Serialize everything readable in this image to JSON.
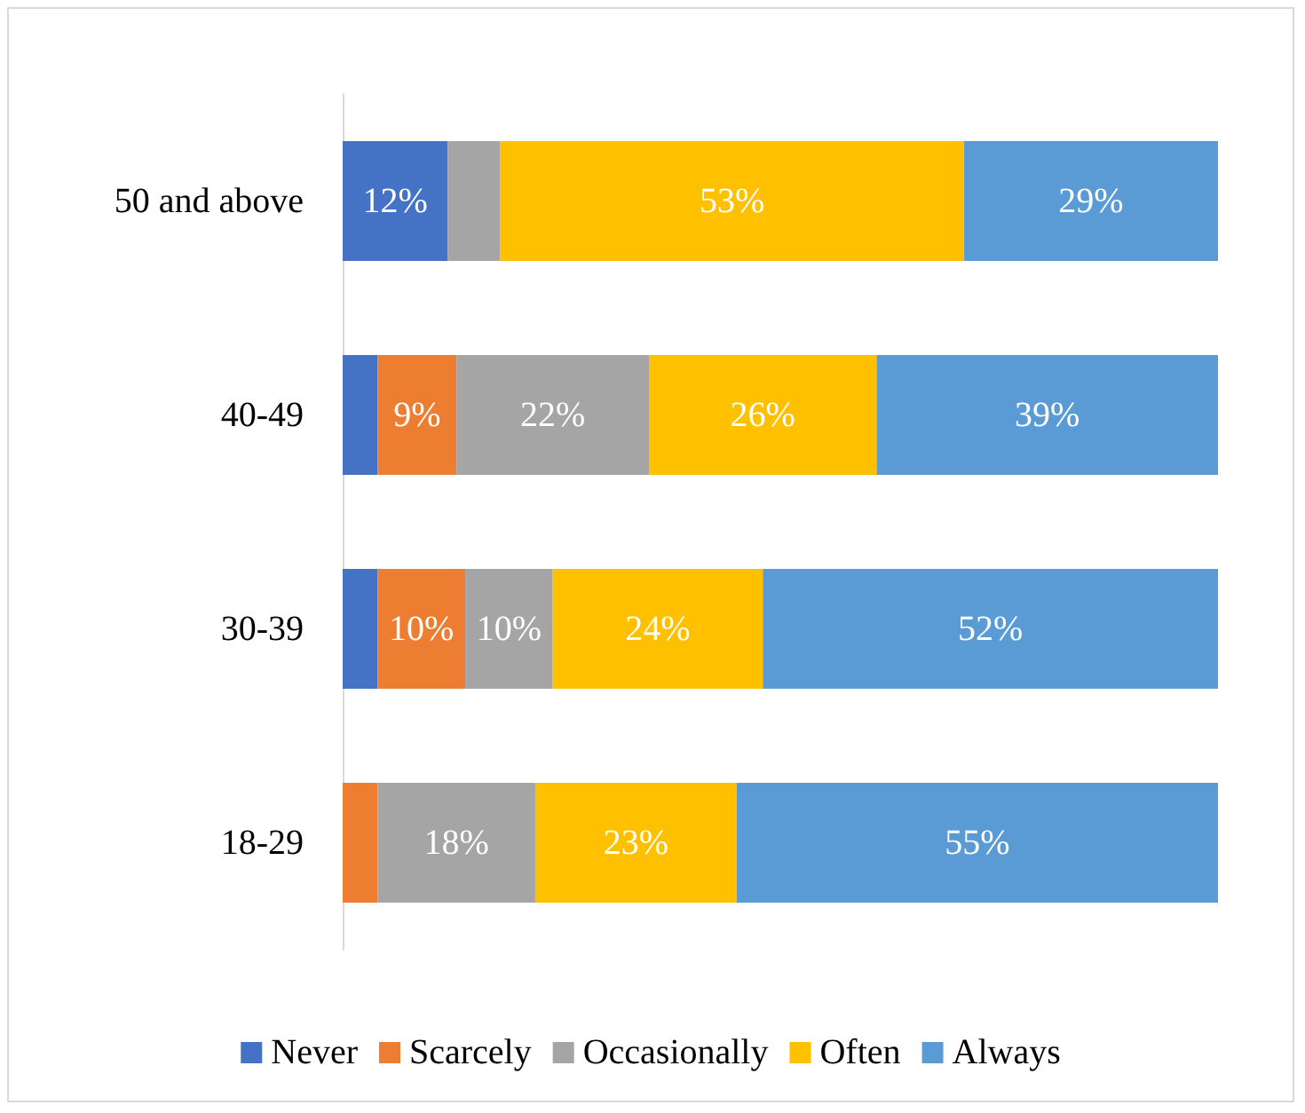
{
  "chart_data": {
    "type": "bar",
    "orientation": "horizontal",
    "stacked": true,
    "categories": [
      "50 and above",
      "40-49",
      "30-39",
      "18-29"
    ],
    "xlim": [
      0,
      100
    ],
    "tick_labels": "y",
    "legend": "bottom",
    "series": [
      {
        "name": "Never",
        "color": "#4472c4",
        "values": [
          12,
          4,
          4,
          0
        ],
        "value_labels": [
          "12%",
          null,
          null,
          null
        ]
      },
      {
        "name": "Scarcely",
        "color": "#ed7d31",
        "values": [
          0,
          9,
          10,
          4
        ],
        "value_labels": [
          null,
          "9%",
          "10%",
          null
        ]
      },
      {
        "name": "Occasionally",
        "color": "#a5a5a5",
        "values": [
          6,
          22,
          10,
          18
        ],
        "value_labels": [
          null,
          "22%",
          "10%",
          "18%"
        ]
      },
      {
        "name": "Often",
        "color": "#ffc000",
        "values": [
          53,
          26,
          24,
          23
        ],
        "value_labels": [
          "53%",
          "26%",
          "24%",
          "23%"
        ]
      },
      {
        "name": "Always",
        "color": "#5b9bd5",
        "values": [
          29,
          39,
          52,
          55
        ],
        "value_labels": [
          "29%",
          "39%",
          "52%",
          "55%"
        ]
      }
    ]
  }
}
